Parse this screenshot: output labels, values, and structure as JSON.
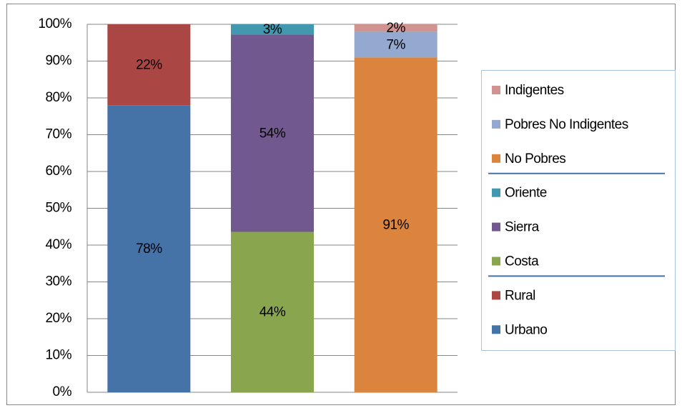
{
  "chart_data": {
    "type": "stacked_bar",
    "categories": [
      null,
      null,
      null
    ],
    "ylim": [
      0,
      100
    ],
    "yticks": [
      {
        "value": 0,
        "label": "0%"
      },
      {
        "value": 10,
        "label": "10%"
      },
      {
        "value": 20,
        "label": "20%"
      },
      {
        "value": 30,
        "label": "30%"
      },
      {
        "value": 40,
        "label": "40%"
      },
      {
        "value": 50,
        "label": "50%"
      },
      {
        "value": 60,
        "label": "60%"
      },
      {
        "value": 70,
        "label": "70%"
      },
      {
        "value": 80,
        "label": "80%"
      },
      {
        "value": 90,
        "label": "90%"
      },
      {
        "value": 100,
        "label": "100%"
      }
    ],
    "grid": true,
    "legend": "right",
    "series": [
      {
        "name": "Urbano",
        "color": "#4572a7",
        "values": [
          78,
          null,
          null
        ],
        "value_labels": [
          "78%",
          null,
          null
        ]
      },
      {
        "name": "Rural",
        "color": "#aa4643",
        "values": [
          22,
          null,
          null
        ],
        "value_labels": [
          "22%",
          null,
          null
        ]
      },
      {
        "name": "Costa",
        "color": "#89a54e",
        "values": [
          null,
          43.6,
          null
        ],
        "value_labels": [
          null,
          "44%",
          null
        ]
      },
      {
        "name": "Sierra",
        "color": "#71588f",
        "values": [
          null,
          53.6,
          null
        ],
        "value_labels": [
          null,
          "54%",
          null
        ]
      },
      {
        "name": "Oriente",
        "color": "#4198af",
        "values": [
          null,
          2.8,
          null
        ],
        "value_labels": [
          null,
          "3%",
          null
        ]
      },
      {
        "name": "No Pobres",
        "color": "#db843d",
        "values": [
          null,
          null,
          91
        ],
        "value_labels": [
          null,
          null,
          "91%"
        ]
      },
      {
        "name": "Pobres No Indigentes",
        "color": "#93a9cf",
        "values": [
          null,
          null,
          7
        ],
        "value_labels": [
          null,
          null,
          "7%"
        ]
      },
      {
        "name": "Indigentes",
        "color": "#d19392",
        "values": [
          null,
          null,
          2
        ],
        "value_labels": [
          null,
          null,
          "2%"
        ]
      }
    ]
  }
}
